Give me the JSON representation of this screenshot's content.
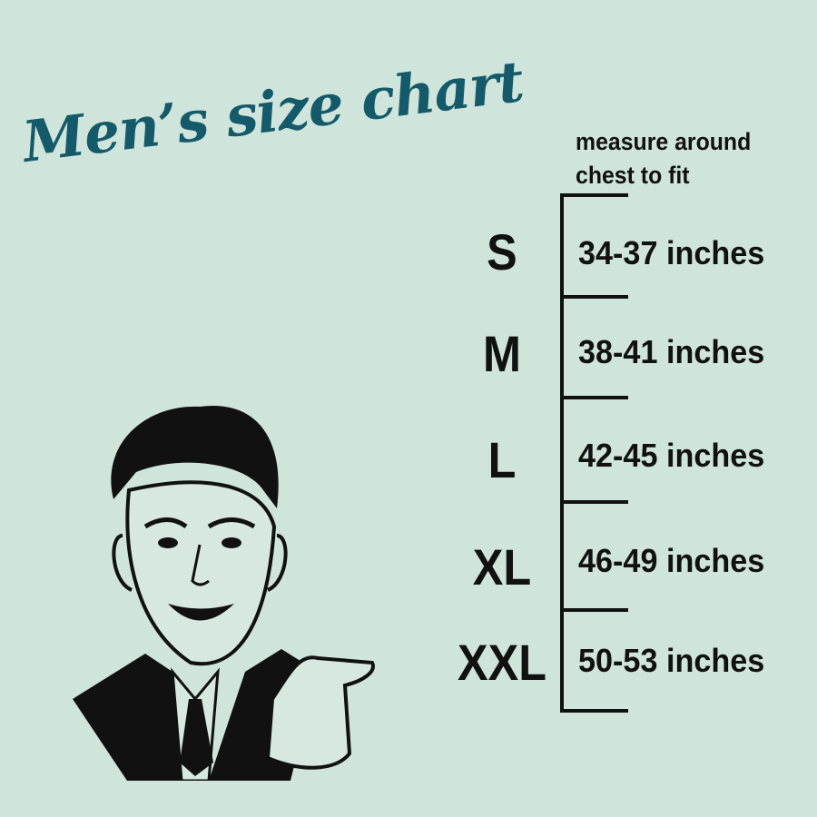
{
  "title": "Men’s size chart",
  "instruction": [
    "measure around",
    "chest to fit"
  ],
  "sizes": [
    {
      "label": "S",
      "range": "34-37 inches"
    },
    {
      "label": "M",
      "range": "38-41 inches"
    },
    {
      "label": "L",
      "range": "42-45 inches"
    },
    {
      "label": "XL",
      "range": "46-49 inches"
    },
    {
      "label": "XXL",
      "range": "50-53 inches"
    }
  ],
  "colors": {
    "background": "#cfe5db",
    "title": "#155a6a",
    "text": "#111111"
  }
}
